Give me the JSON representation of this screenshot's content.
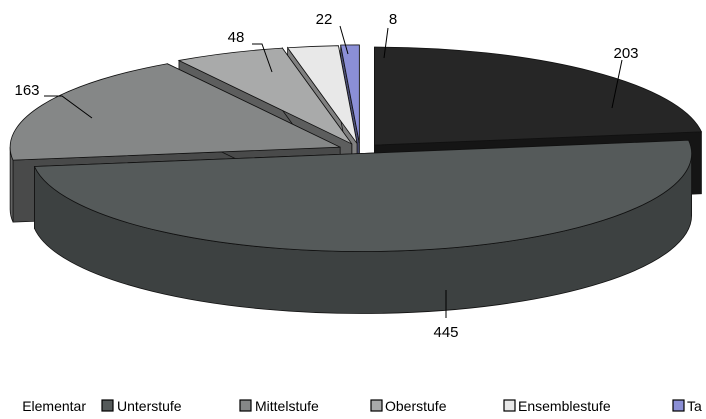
{
  "chart_data": {
    "type": "pie",
    "style": "3d-exploded",
    "title": "",
    "legend_position": "bottom",
    "slices": [
      {
        "name": "Elementar",
        "label": "Elementar",
        "value": 203,
        "value_label": "203",
        "color": "#262626"
      },
      {
        "name": "Unterstufe",
        "label": "Unterstufe",
        "value": 445,
        "value_label": "445",
        "color": "#555a5a"
      },
      {
        "name": "Mittelstufe",
        "label": "Mittelstufe",
        "value": 163,
        "value_label": "163",
        "color": "#858787"
      },
      {
        "name": "Oberstufe",
        "label": "Oberstufe",
        "value": 48,
        "value_label": "48",
        "color": "#a9aaaa"
      },
      {
        "name": "Ensemblestufe",
        "label": "Ensemblestufe",
        "value": 22,
        "value_label": "22",
        "color": "#e8e8e8"
      },
      {
        "name": "Tanz",
        "label": "Ta",
        "value": 8,
        "value_label": "8",
        "color": "#8b8fd6"
      }
    ]
  }
}
